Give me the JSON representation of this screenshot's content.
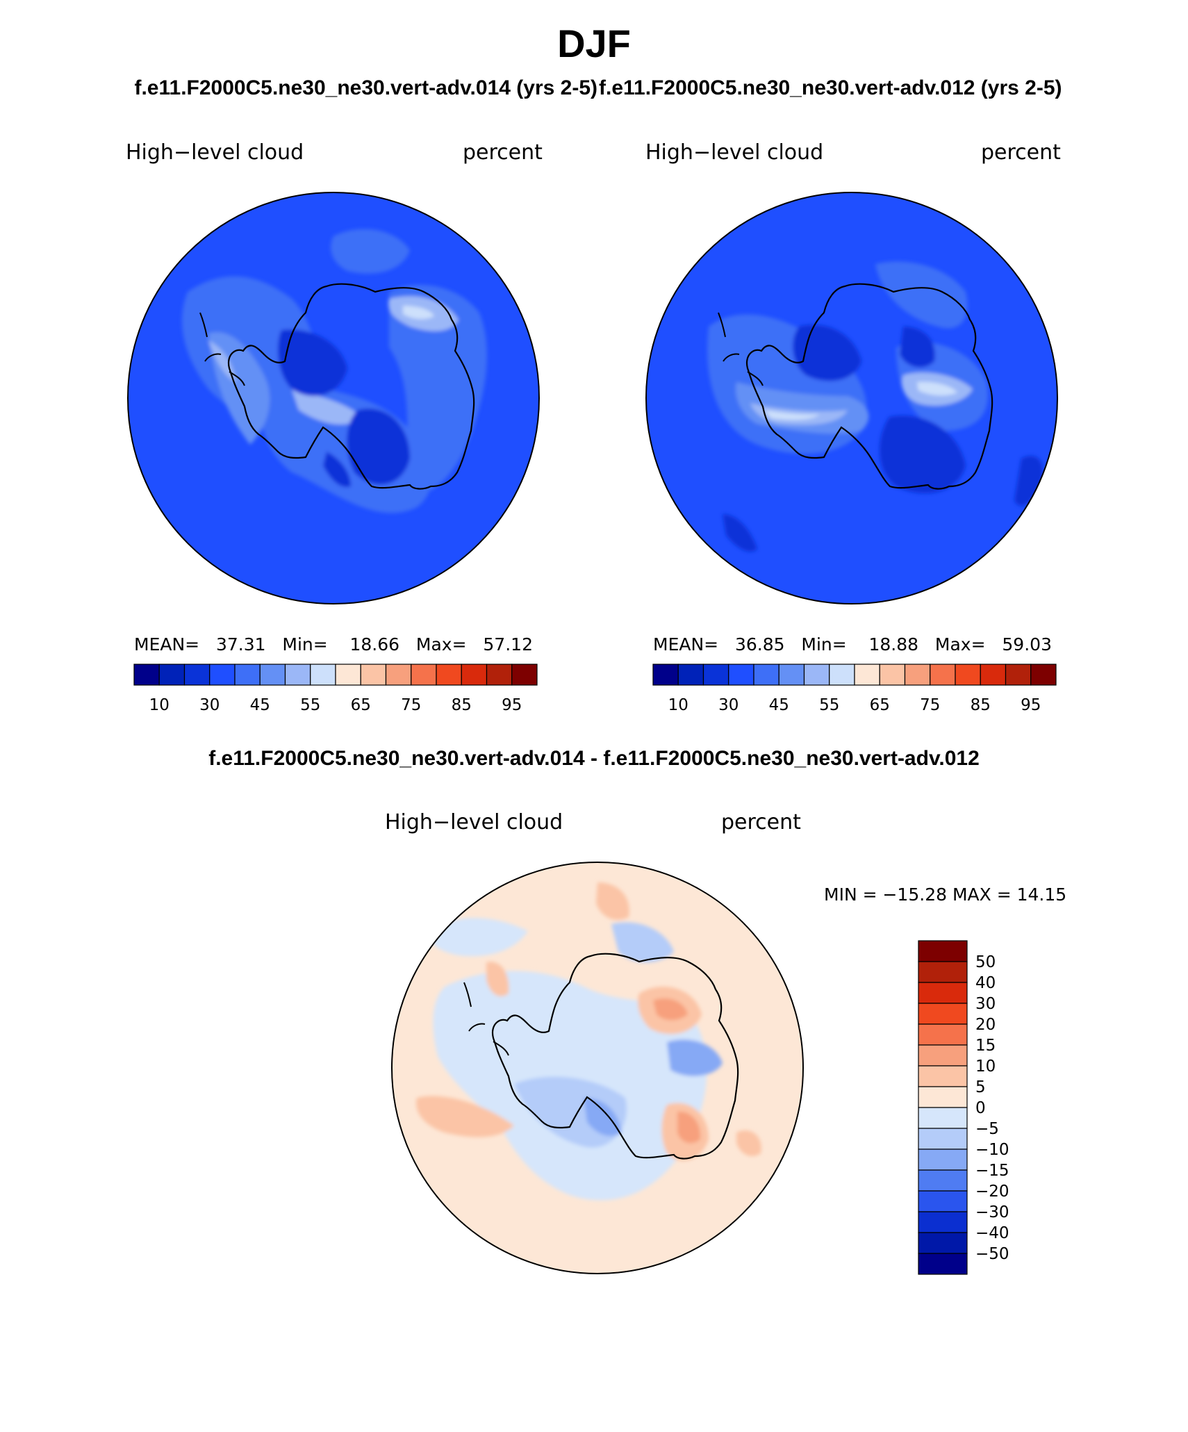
{
  "header": {
    "title": "DJF",
    "case_left": "f.e11.F2000C5.ne30_ne30.vert-adv.014 (yrs 2-5)",
    "case_right": "f.e11.F2000C5.ne30_ne30.vert-adv.012 (yrs 2-5)",
    "diff_title": "f.e11.F2000C5.ne30_ne30.vert-adv.014 - f.e11.F2000C5.ne30_ne30.vert-adv.012"
  },
  "chart_data": [
    {
      "type": "heatmap",
      "projection": "south polar stereographic",
      "left_label": "High−level cloud",
      "right_label": "percent",
      "stats": {
        "mean_label": "MEAN=",
        "mean": "37.31",
        "min_label": "Min=",
        "min": "18.66",
        "max_label": "Max=",
        "max": "57.12"
      },
      "colorbar_levels": [
        "10",
        "30",
        "45",
        "55",
        "65",
        "75",
        "85",
        "95"
      ],
      "colorbar_colors": [
        "#00008a",
        "#0022b8",
        "#0a33d8",
        "#1f4fff",
        "#3e6ff7",
        "#6490f5",
        "#9bb7f7",
        "#cde0fb",
        "#fde7d6",
        "#fbc4a6",
        "#f7a07d",
        "#f5724b",
        "#f0491f",
        "#d92a0c",
        "#b1210a",
        "#7d0000"
      ],
      "field_value_range": [
        18.66,
        57.12
      ]
    },
    {
      "type": "heatmap",
      "projection": "south polar stereographic",
      "left_label": "High−level cloud",
      "right_label": "percent",
      "stats": {
        "mean_label": "MEAN=",
        "mean": "36.85",
        "min_label": "Min=",
        "min": "18.88",
        "max_label": "Max=",
        "max": "59.03"
      },
      "colorbar_levels": [
        "10",
        "30",
        "45",
        "55",
        "65",
        "75",
        "85",
        "95"
      ],
      "colorbar_colors": [
        "#00008a",
        "#0022b8",
        "#0a33d8",
        "#1f4fff",
        "#3e6ff7",
        "#6490f5",
        "#9bb7f7",
        "#cde0fb",
        "#fde7d6",
        "#fbc4a6",
        "#f7a07d",
        "#f5724b",
        "#f0491f",
        "#d92a0c",
        "#b1210a",
        "#7d0000"
      ],
      "field_value_range": [
        18.88,
        59.03
      ]
    },
    {
      "type": "heatmap",
      "projection": "south polar stereographic",
      "left_label": "High−level cloud",
      "right_label": "percent",
      "stats_text": "MIN = −15.28 MAX =   14.15",
      "stats": {
        "min": -15.28,
        "max": 14.15
      },
      "colorbar_levels": [
        "50",
        "40",
        "30",
        "20",
        "15",
        "10",
        "5",
        "0",
        "−5",
        "−10",
        "−15",
        "−20",
        "−30",
        "−40",
        "−50"
      ],
      "colorbar_colors": [
        "#7d0000",
        "#b1210a",
        "#d92a0c",
        "#f0491f",
        "#f5724b",
        "#f7a07d",
        "#fbc4a6",
        "#fde7d6",
        "#d6e6fb",
        "#b4ccf9",
        "#86a9f5",
        "#4f7cf2",
        "#2a55ee",
        "#0b2fd0",
        "#0018a8",
        "#00008a"
      ]
    }
  ]
}
